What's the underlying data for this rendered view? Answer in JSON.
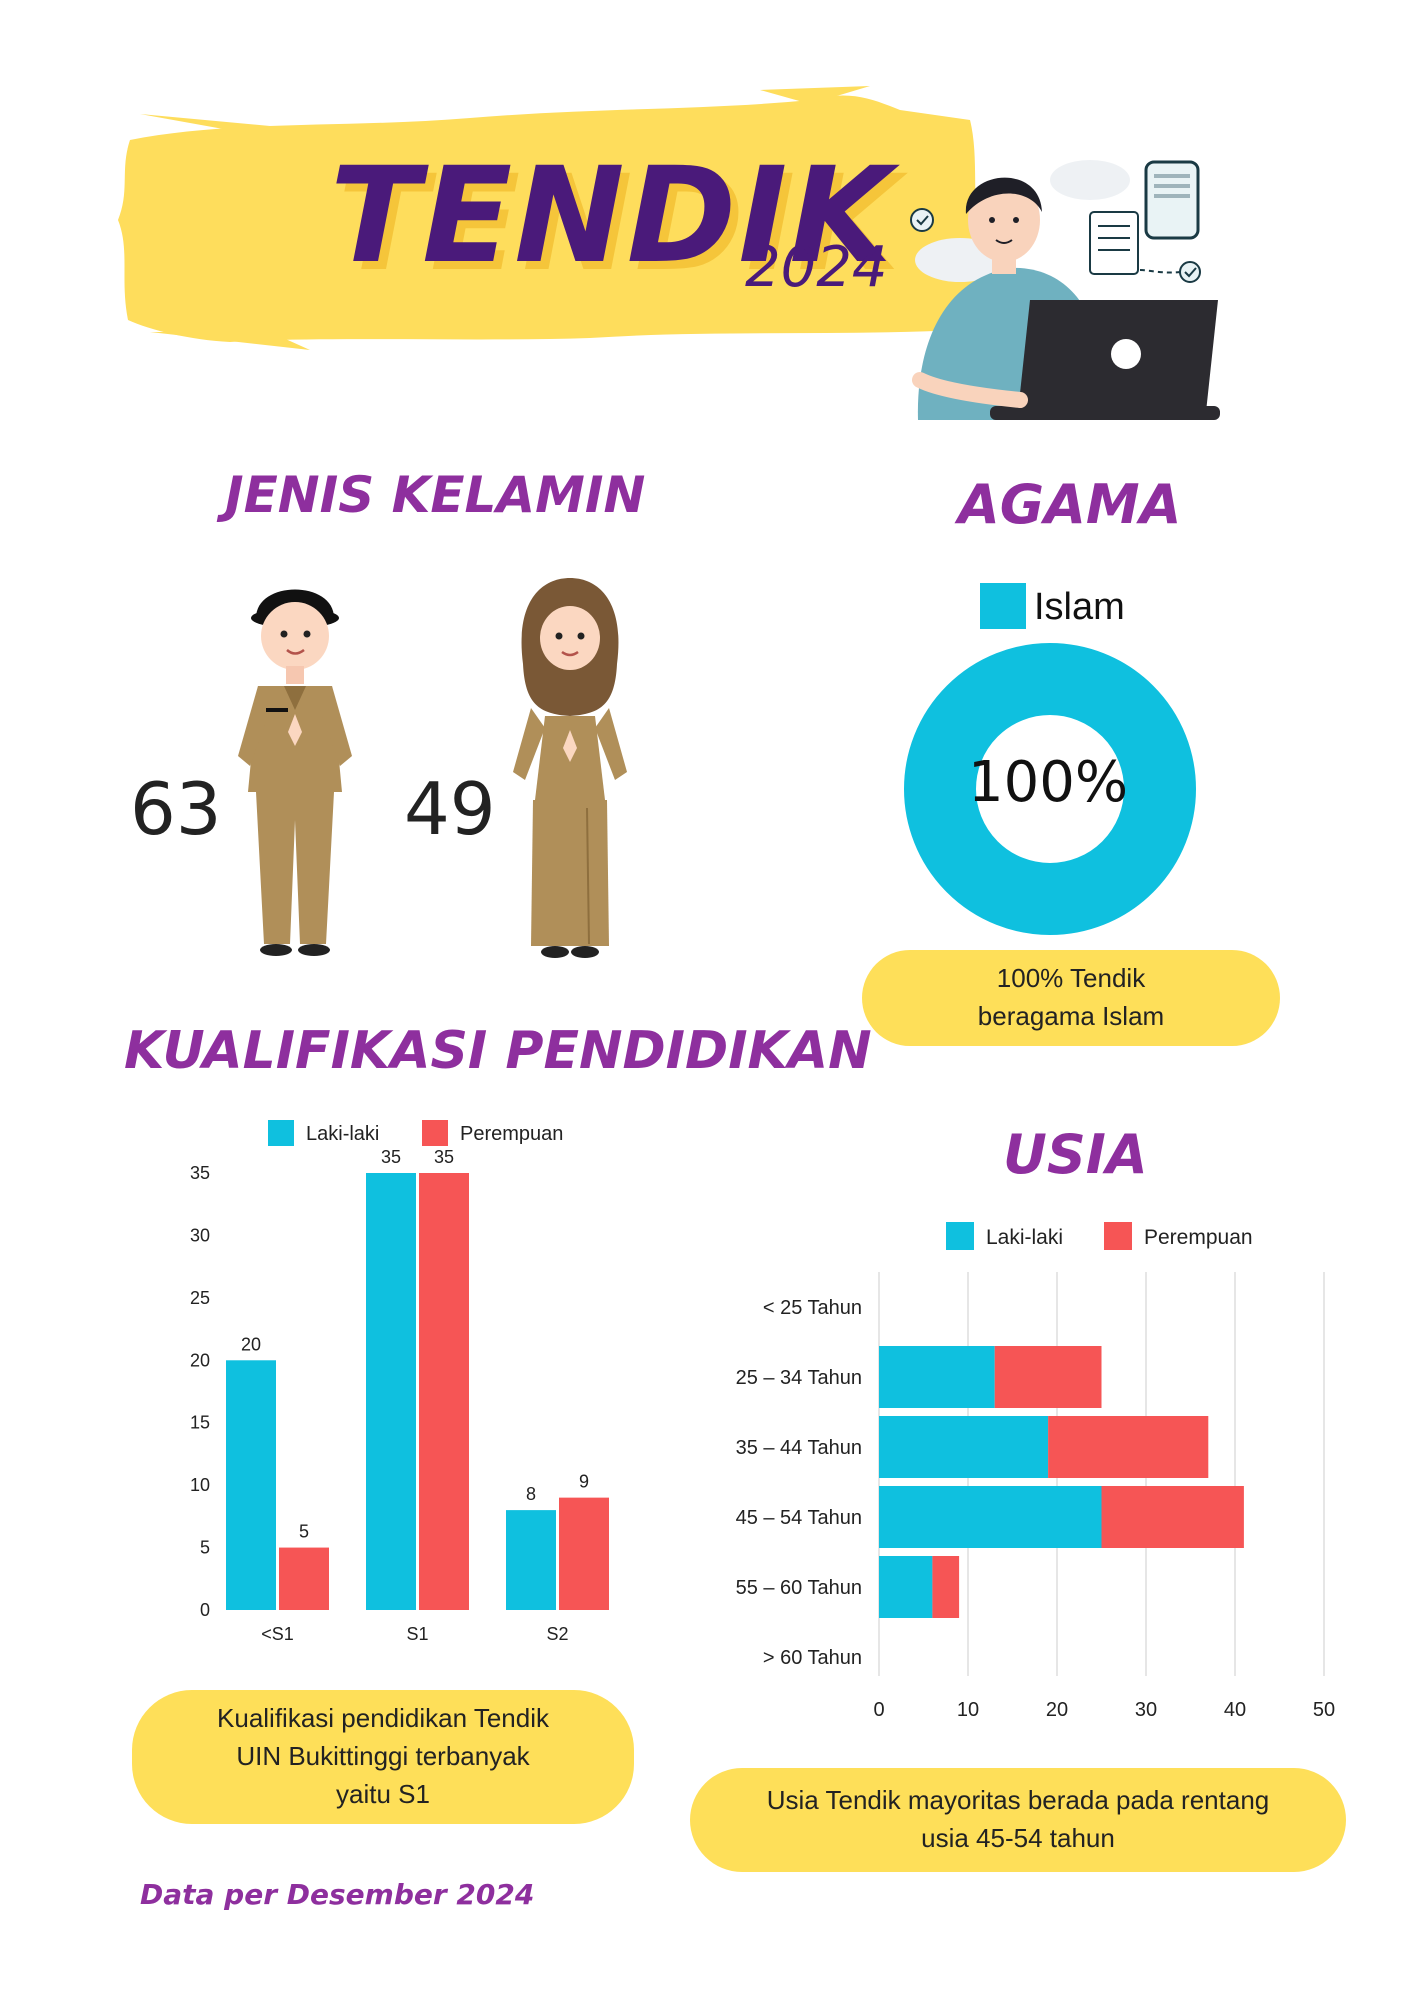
{
  "header": {
    "title": "TENDIK",
    "year": "2024"
  },
  "gender": {
    "title": "JENIS KELAMIN",
    "male_count": "63",
    "female_count": "49"
  },
  "religion": {
    "title": "AGAMA",
    "legend_label": "Islam",
    "center_label": "100%",
    "note_line1": "100% Tendik",
    "note_line2": "beragama Islam"
  },
  "education": {
    "title": "KUALIFIKASI PENDIDIKAN",
    "note_line1": "Kualifikasi pendidikan Tendik",
    "note_line2": "UIN Bukittinggi terbanyak",
    "note_line3": "yaitu S1"
  },
  "age": {
    "title": "USIA",
    "note_line1": "Usia Tendik mayoritas berada pada rentang",
    "note_line2": "usia 45-54 tahun"
  },
  "footer": {
    "note": "Data per Desember 2024"
  },
  "colors": {
    "male": "#0fc0df",
    "female": "#f65555",
    "accent": "#fedf59",
    "title": "#8e2f9e"
  },
  "chart_data": [
    {
      "type": "pie",
      "categories": [
        "Islam"
      ],
      "values": [
        100
      ],
      "legend": "top"
    },
    {
      "type": "bar",
      "categories": [
        "<S1",
        "S1",
        "S2"
      ],
      "series": [
        {
          "name": "Laki-laki",
          "values": [
            20,
            35,
            8
          ]
        },
        {
          "name": "Perempuan",
          "values": [
            5,
            35,
            9
          ]
        }
      ],
      "ylim": [
        0,
        35
      ],
      "yticks": [
        0,
        5,
        10,
        15,
        20,
        25,
        30,
        35
      ],
      "data_labels": true,
      "legend": "top",
      "grid": false
    },
    {
      "type": "bar",
      "orientation": "horizontal",
      "stacked": true,
      "categories": [
        "< 25 Tahun",
        "25 – 34 Tahun",
        "35 – 44 Tahun",
        "45 – 54 Tahun",
        "55 – 60 Tahun",
        "> 60 Tahun"
      ],
      "series": [
        {
          "name": "Laki-laki",
          "values": [
            0,
            13,
            19,
            25,
            6,
            0
          ]
        },
        {
          "name": "Perempuan",
          "values": [
            0,
            12,
            18,
            16,
            3,
            0
          ]
        }
      ],
      "xlim": [
        0,
        50
      ],
      "xticks": [
        0,
        10,
        20,
        30,
        40,
        50
      ],
      "legend": "top",
      "grid": true
    }
  ]
}
